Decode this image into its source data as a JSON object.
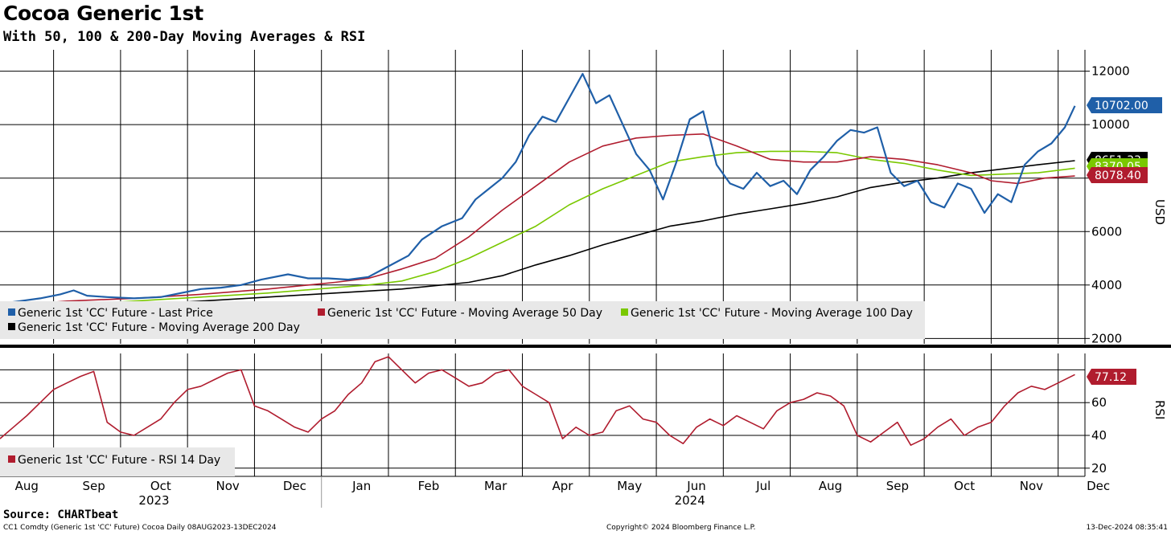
{
  "title": "Cocoa Generic 1st",
  "subtitle": "With 50, 100 & 200-Day Moving Averages & RSI",
  "source": "Source: CHARTbeat",
  "footer": {
    "left": "CC1 Comdty (Generic 1st 'CC' Future) Cocoa  Daily 08AUG2023-13DEC2024",
    "center": "Copyright© 2024 Bloomberg Finance L.P.",
    "right": "13-Dec-2024 08:35:41"
  },
  "colors": {
    "last_price": "#1f5fa8",
    "ma50": "#b01c2e",
    "ma100": "#7ac800",
    "ma200": "#000000",
    "rsi": "#b01c2e"
  },
  "chart_data": [
    {
      "type": "line",
      "panel": "price",
      "ylabel": "USD",
      "ylim": [
        1800,
        12800
      ],
      "yticks": [
        2000,
        4000,
        6000,
        8000,
        10000,
        12000
      ],
      "x_range": [
        0,
        16.2
      ],
      "x_months": [
        "Aug",
        "Sep",
        "Oct",
        "Nov",
        "Dec",
        "Jan",
        "Feb",
        "Mar",
        "Apr",
        "May",
        "Jun",
        "Jul",
        "Aug",
        "Sep",
        "Oct",
        "Nov",
        "Dec"
      ],
      "x_years": [
        {
          "label": "2023",
          "pos": 2.3
        },
        {
          "label": "2024",
          "pos": 10.3
        }
      ],
      "series": [
        {
          "name": "Generic 1st 'CC' Future - Last Price",
          "color_key": "last_price",
          "x": [
            0,
            0.3,
            0.6,
            0.9,
            1.1,
            1.3,
            1.6,
            2.0,
            2.4,
            2.7,
            3.0,
            3.3,
            3.6,
            3.9,
            4.3,
            4.6,
            4.9,
            5.2,
            5.5,
            5.8,
            6.1,
            6.3,
            6.6,
            6.9,
            7.1,
            7.3,
            7.5,
            7.7,
            7.9,
            8.1,
            8.3,
            8.5,
            8.7,
            8.9,
            9.1,
            9.3,
            9.5,
            9.7,
            9.9,
            10.1,
            10.3,
            10.5,
            10.7,
            10.9,
            11.1,
            11.3,
            11.5,
            11.7,
            11.9,
            12.1,
            12.3,
            12.5,
            12.7,
            12.9,
            13.1,
            13.3,
            13.5,
            13.7,
            13.9,
            14.1,
            14.3,
            14.5,
            14.7,
            14.9,
            15.1,
            15.3,
            15.5,
            15.7,
            15.9,
            16.05
          ],
          "values": [
            3300,
            3400,
            3500,
            3650,
            3800,
            3600,
            3550,
            3500,
            3550,
            3700,
            3850,
            3900,
            4000,
            4200,
            4400,
            4250,
            4250,
            4200,
            4300,
            4700,
            5100,
            5700,
            6200,
            6500,
            7200,
            7600,
            8000,
            8600,
            9600,
            10300,
            10100,
            11000,
            11900,
            10800,
            11100,
            10000,
            8900,
            8300,
            7200,
            8600,
            10200,
            10500,
            8500,
            7800,
            7600,
            8200,
            7700,
            7900,
            7400,
            8300,
            8800,
            9400,
            9800,
            9700,
            9900,
            8200,
            7700,
            7900,
            7100,
            6900,
            7800,
            7600,
            6700,
            7400,
            7100,
            8500,
            9000,
            9300,
            9900,
            10702
          ]
        },
        {
          "name": "Generic 1st 'CC' Future - Moving Average 50 Day",
          "color_key": "ma50",
          "x": [
            0,
            1,
            2,
            3,
            4,
            5,
            5.5,
            6,
            6.5,
            7,
            7.5,
            8,
            8.5,
            9,
            9.5,
            10,
            10.5,
            11,
            11.5,
            12,
            12.5,
            13,
            13.5,
            14,
            14.5,
            14.8,
            15.2,
            15.6,
            16.05
          ],
          "values": [
            3200,
            3400,
            3500,
            3650,
            3850,
            4100,
            4250,
            4600,
            5000,
            5800,
            6800,
            7700,
            8600,
            9200,
            9500,
            9600,
            9650,
            9200,
            8700,
            8600,
            8600,
            8800,
            8700,
            8500,
            8200,
            7900,
            7800,
            8000,
            8078.4
          ]
        },
        {
          "name": "Generic 1st 'CC' Future - Moving Average 100 Day",
          "color_key": "ma100",
          "x": [
            0,
            1,
            2,
            3,
            4,
            5,
            5.5,
            6,
            6.5,
            7,
            7.5,
            8,
            8.5,
            9,
            9.5,
            10,
            10.5,
            11,
            11.5,
            12,
            12.5,
            13,
            13.5,
            14,
            14.5,
            15,
            15.5,
            16.05
          ],
          "values": [
            3050,
            3250,
            3400,
            3550,
            3700,
            3900,
            4000,
            4150,
            4500,
            5000,
            5600,
            6200,
            7000,
            7600,
            8100,
            8600,
            8800,
            8950,
            9000,
            9000,
            8950,
            8700,
            8550,
            8300,
            8100,
            8150,
            8200,
            8370.05
          ]
        },
        {
          "name": "Generic 1st 'CC' Future - Moving Average 200 Day",
          "color_key": "ma200",
          "x": [
            0,
            1,
            2,
            3,
            4,
            5,
            6,
            7,
            7.5,
            8,
            8.5,
            9,
            9.5,
            10,
            10.5,
            11,
            11.5,
            12,
            12.5,
            13,
            13.5,
            14,
            14.5,
            15,
            15.5,
            16.05
          ],
          "values": [
            2950,
            3100,
            3250,
            3400,
            3550,
            3700,
            3850,
            4100,
            4350,
            4750,
            5100,
            5500,
            5850,
            6200,
            6400,
            6650,
            6850,
            7050,
            7300,
            7650,
            7850,
            8000,
            8200,
            8350,
            8500,
            8651.33
          ]
        }
      ],
      "last_value_tags": [
        {
          "text": "10702.00",
          "value": 10702,
          "color_key": "last_price",
          "text_color": "#ffffff"
        },
        {
          "text": "8651.33",
          "value": 8651.33,
          "color_key": "ma200",
          "text_color": "#ffffff"
        },
        {
          "text": "8370.05",
          "value": 8370.05,
          "color_key": "ma100",
          "text_color": "#000000"
        },
        {
          "text": "8078.40",
          "value": 8078.4,
          "color_key": "ma50",
          "text_color": "#ffffff"
        }
      ],
      "legend": [
        {
          "label": "Generic 1st 'CC' Future - Last Price",
          "color_key": "last_price"
        },
        {
          "label": "Generic 1st 'CC' Future - Moving Average 50 Day",
          "color_key": "ma50"
        },
        {
          "label": "Generic 1st 'CC' Future - Moving Average 100 Day",
          "color_key": "ma100"
        },
        {
          "label": "Generic 1st 'CC' Future - Moving Average 200 Day",
          "color_key": "ma200"
        }
      ]
    },
    {
      "type": "line",
      "panel": "rsi",
      "ylabel": "RSI",
      "ylim": [
        15,
        90
      ],
      "yticks": [
        20,
        40,
        60
      ],
      "series": [
        {
          "name": "Generic 1st 'CC' Future - RSI 14 Day",
          "color_key": "rsi",
          "x": [
            0,
            0.2,
            0.4,
            0.6,
            0.8,
            1.0,
            1.2,
            1.4,
            1.6,
            1.8,
            2.0,
            2.2,
            2.4,
            2.6,
            2.8,
            3.0,
            3.2,
            3.4,
            3.6,
            3.8,
            4.0,
            4.2,
            4.4,
            4.6,
            4.8,
            5.0,
            5.2,
            5.4,
            5.6,
            5.8,
            6.0,
            6.2,
            6.4,
            6.6,
            6.8,
            7.0,
            7.2,
            7.4,
            7.6,
            7.8,
            8.0,
            8.2,
            8.4,
            8.6,
            8.8,
            9.0,
            9.2,
            9.4,
            9.6,
            9.8,
            10.0,
            10.2,
            10.4,
            10.6,
            10.8,
            11.0,
            11.2,
            11.4,
            11.6,
            11.8,
            12.0,
            12.2,
            12.4,
            12.6,
            12.8,
            13.0,
            13.2,
            13.4,
            13.6,
            13.8,
            14.0,
            14.2,
            14.4,
            14.6,
            14.8,
            15.0,
            15.2,
            15.4,
            15.6,
            15.8,
            16.05
          ],
          "values": [
            38,
            45,
            52,
            60,
            68,
            72,
            76,
            79,
            48,
            42,
            40,
            45,
            50,
            60,
            68,
            70,
            74,
            78,
            80,
            58,
            55,
            50,
            45,
            42,
            50,
            55,
            65,
            72,
            85,
            88,
            80,
            72,
            78,
            80,
            75,
            70,
            72,
            78,
            80,
            70,
            65,
            60,
            38,
            45,
            40,
            42,
            55,
            58,
            50,
            48,
            40,
            35,
            45,
            50,
            46,
            52,
            48,
            44,
            55,
            60,
            62,
            66,
            64,
            58,
            40,
            36,
            42,
            48,
            34,
            38,
            45,
            50,
            40,
            45,
            48,
            58,
            66,
            70,
            68,
            72,
            77.12
          ]
        }
      ],
      "last_value_tags": [
        {
          "text": "77.12",
          "value": 77.12,
          "color_key": "rsi",
          "text_color": "#ffffff"
        }
      ],
      "legend": [
        {
          "label": "Generic 1st 'CC' Future - RSI 14 Day",
          "color_key": "rsi"
        }
      ]
    }
  ]
}
